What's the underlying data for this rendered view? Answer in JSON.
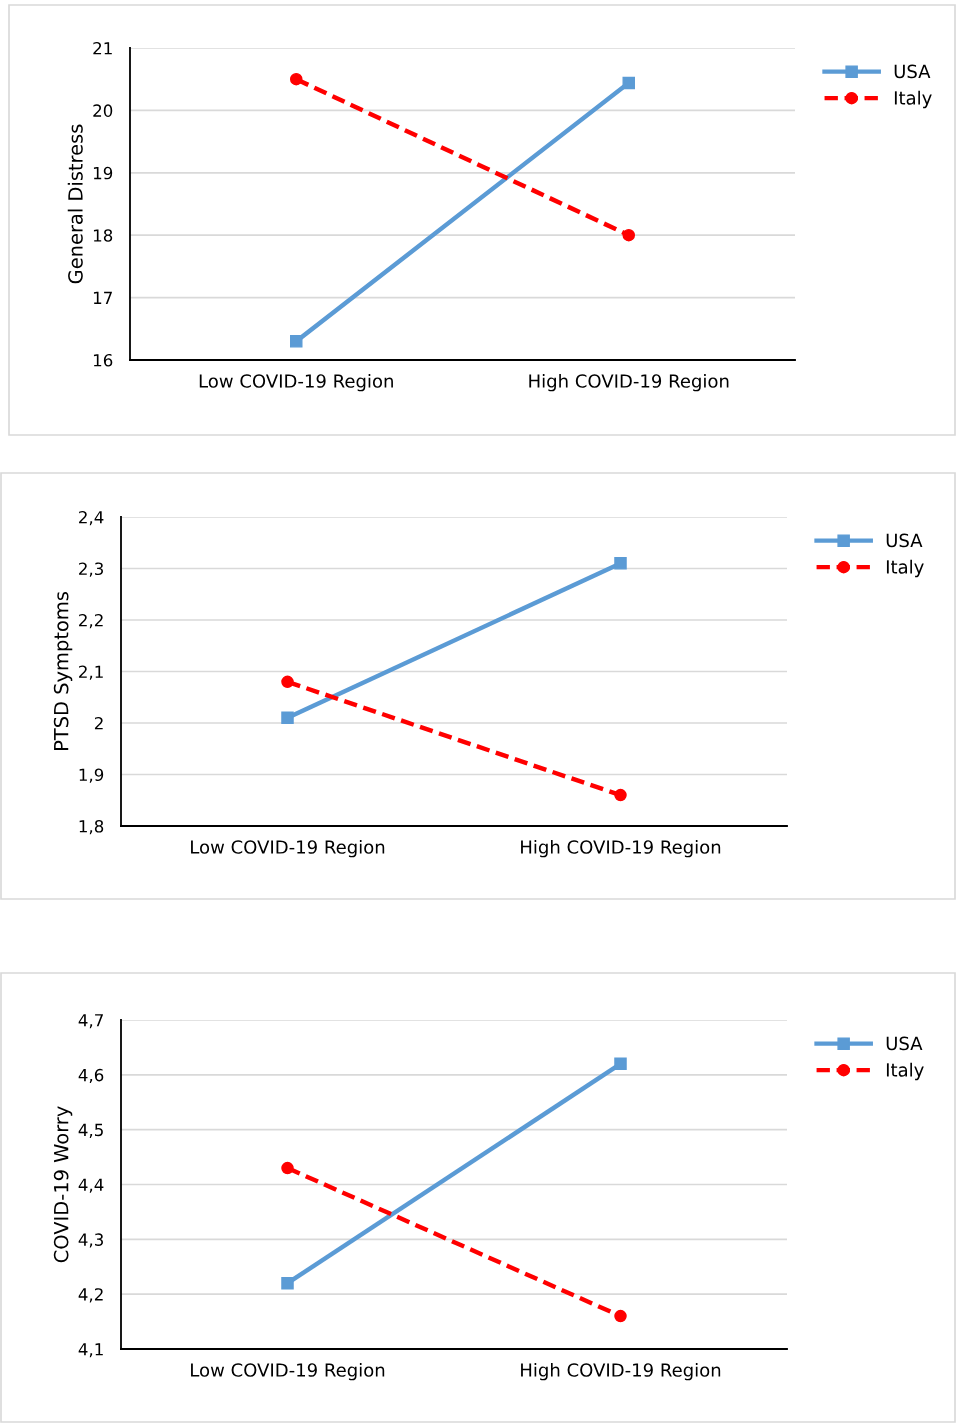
{
  "chart_data": [
    {
      "type": "line",
      "ylabel": "General Distress",
      "categories": [
        "Low COVID-19 Region",
        "High COVID-19 Region"
      ],
      "series": [
        {
          "name": "USA",
          "color": "#5b9bd5",
          "values": [
            16.3,
            20.44
          ],
          "marker": "square",
          "line_style": "solid"
        },
        {
          "name": "Italy",
          "color": "#ff0000",
          "values": [
            20.5,
            18.0
          ],
          "marker": "circle",
          "line_style": "dashed"
        }
      ],
      "ylim": [
        16,
        21
      ],
      "yticks": [
        16,
        17,
        18,
        19,
        20,
        21
      ],
      "grid": "y",
      "legend": "top right"
    },
    {
      "type": "line",
      "ylabel": "PTSD Symptoms",
      "categories": [
        "Low COVID-19 Region",
        "High COVID-19 Region"
      ],
      "series": [
        {
          "name": "USA",
          "color": "#5b9bd5",
          "values": [
            2.01,
            2.31
          ],
          "marker": "square",
          "line_style": "solid"
        },
        {
          "name": "Italy",
          "color": "#ff0000",
          "values": [
            2.08,
            1.86
          ],
          "marker": "circle",
          "line_style": "dashed"
        }
      ],
      "ylim": [
        1.8,
        2.4
      ],
      "yticks": [
        {
          "value": 1.8,
          "label": "1,8"
        },
        {
          "value": 1.9,
          "label": "1,9"
        },
        {
          "value": 2,
          "label": "2"
        },
        {
          "value": 2.1,
          "label": "2,1"
        },
        {
          "value": 2.2,
          "label": "2,2"
        },
        {
          "value": 2.3,
          "label": "2,3"
        },
        {
          "value": 2.4,
          "label": "2,4"
        }
      ],
      "grid": "y",
      "legend": "top right"
    },
    {
      "type": "line",
      "ylabel": "COVID-19 Worry",
      "categories": [
        "Low COVID-19 Region",
        "High COVID-19 Region"
      ],
      "series": [
        {
          "name": "USA",
          "color": "#5b9bd5",
          "values": [
            4.22,
            4.62
          ],
          "marker": "square",
          "line_style": "solid"
        },
        {
          "name": "Italy",
          "color": "#ff0000",
          "values": [
            4.43,
            4.16
          ],
          "marker": "circle",
          "line_style": "dashed"
        }
      ],
      "ylim": [
        4.1,
        4.7
      ],
      "yticks": [
        {
          "value": 4.1,
          "label": "4,1"
        },
        {
          "value": 4.2,
          "label": "4,2"
        },
        {
          "value": 4.3,
          "label": "4,3"
        },
        {
          "value": 4.4,
          "label": "4,4"
        },
        {
          "value": 4.5,
          "label": "4,5"
        },
        {
          "value": 4.6,
          "label": "4,6"
        },
        {
          "value": 4.7,
          "label": "4,7"
        }
      ],
      "grid": "y",
      "legend": "top right"
    }
  ]
}
